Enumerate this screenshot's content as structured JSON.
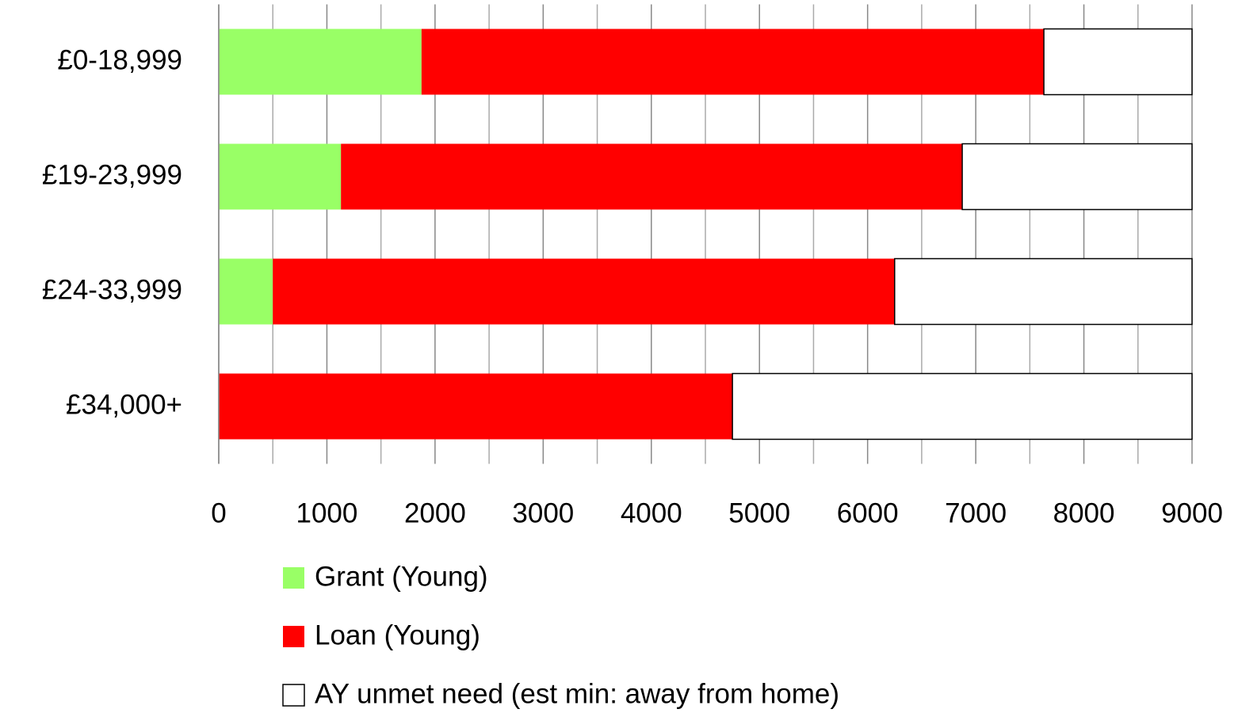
{
  "chart_data": {
    "type": "stacked-bar-horizontal",
    "categories": [
      "£0-18,999",
      "£19-23,999",
      "£24-33,999",
      "£34,000+"
    ],
    "series": [
      {
        "name": "Grant (Young)",
        "color": "#99ff66",
        "values": [
          1875,
          1130,
          500,
          0
        ]
      },
      {
        "name": "Loan (Young)",
        "color": "#ff0000",
        "values": [
          5755,
          5745,
          5750,
          4750
        ]
      },
      {
        "name": "AY unmet need (est min: away from home)",
        "color": "#ffffff",
        "values": [
          1370,
          2125,
          2750,
          4250
        ]
      }
    ],
    "xlim": [
      0,
      9000
    ],
    "xticks": [
      0,
      1000,
      2000,
      3000,
      4000,
      5000,
      6000,
      7000,
      8000,
      9000
    ],
    "xminorticks": [
      500,
      1500,
      2500,
      3500,
      4500,
      5500,
      6500,
      7500,
      8500
    ],
    "grid": true
  }
}
